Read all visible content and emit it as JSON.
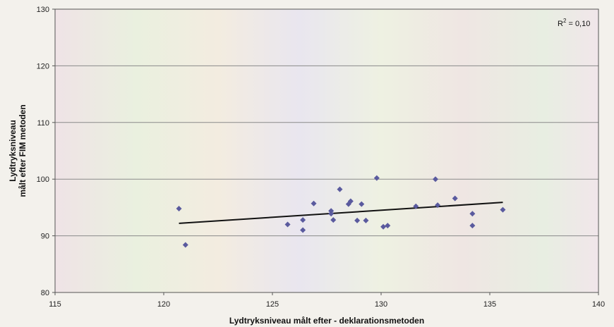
{
  "chart_data": {
    "type": "scatter",
    "title": "",
    "xlabel": "Lydtryksniveau målt efter - deklarationsmetoden",
    "ylabel_line1": "Lydtryksniveau",
    "ylabel_line2": "målt efter FIM metoden",
    "xlim": [
      115,
      140
    ],
    "ylim": [
      80,
      130
    ],
    "xticks": [
      115,
      120,
      125,
      130,
      135,
      140
    ],
    "yticks": [
      80,
      90,
      100,
      110,
      120,
      130
    ],
    "grid": {
      "horizontal": true,
      "vertical": false
    },
    "annotation": {
      "prefix": "R",
      "superscript": "2",
      "suffix": " = 0,10"
    },
    "colors": {
      "point": "#5a5a9e",
      "trendline": "#111111",
      "grid": "#8a8a8a"
    },
    "points": [
      {
        "x": 120.7,
        "y": 94.8
      },
      {
        "x": 121.0,
        "y": 88.4
      },
      {
        "x": 125.7,
        "y": 92.0
      },
      {
        "x": 126.4,
        "y": 91.0
      },
      {
        "x": 126.4,
        "y": 92.8
      },
      {
        "x": 126.9,
        "y": 95.7
      },
      {
        "x": 127.7,
        "y": 94.4
      },
      {
        "x": 127.7,
        "y": 93.9
      },
      {
        "x": 127.8,
        "y": 92.8
      },
      {
        "x": 128.1,
        "y": 98.2
      },
      {
        "x": 128.5,
        "y": 95.6
      },
      {
        "x": 128.6,
        "y": 96.1
      },
      {
        "x": 128.9,
        "y": 92.7
      },
      {
        "x": 129.1,
        "y": 95.6
      },
      {
        "x": 129.3,
        "y": 92.7
      },
      {
        "x": 129.8,
        "y": 100.2
      },
      {
        "x": 130.1,
        "y": 91.6
      },
      {
        "x": 130.3,
        "y": 91.8
      },
      {
        "x": 131.6,
        "y": 95.2
      },
      {
        "x": 132.5,
        "y": 100.0
      },
      {
        "x": 132.6,
        "y": 95.4
      },
      {
        "x": 133.4,
        "y": 96.6
      },
      {
        "x": 134.2,
        "y": 93.9
      },
      {
        "x": 134.2,
        "y": 91.8
      },
      {
        "x": 135.6,
        "y": 94.6
      }
    ],
    "trendline": {
      "x": [
        120.7,
        135.6
      ],
      "y": [
        92.2,
        95.9
      ]
    }
  }
}
